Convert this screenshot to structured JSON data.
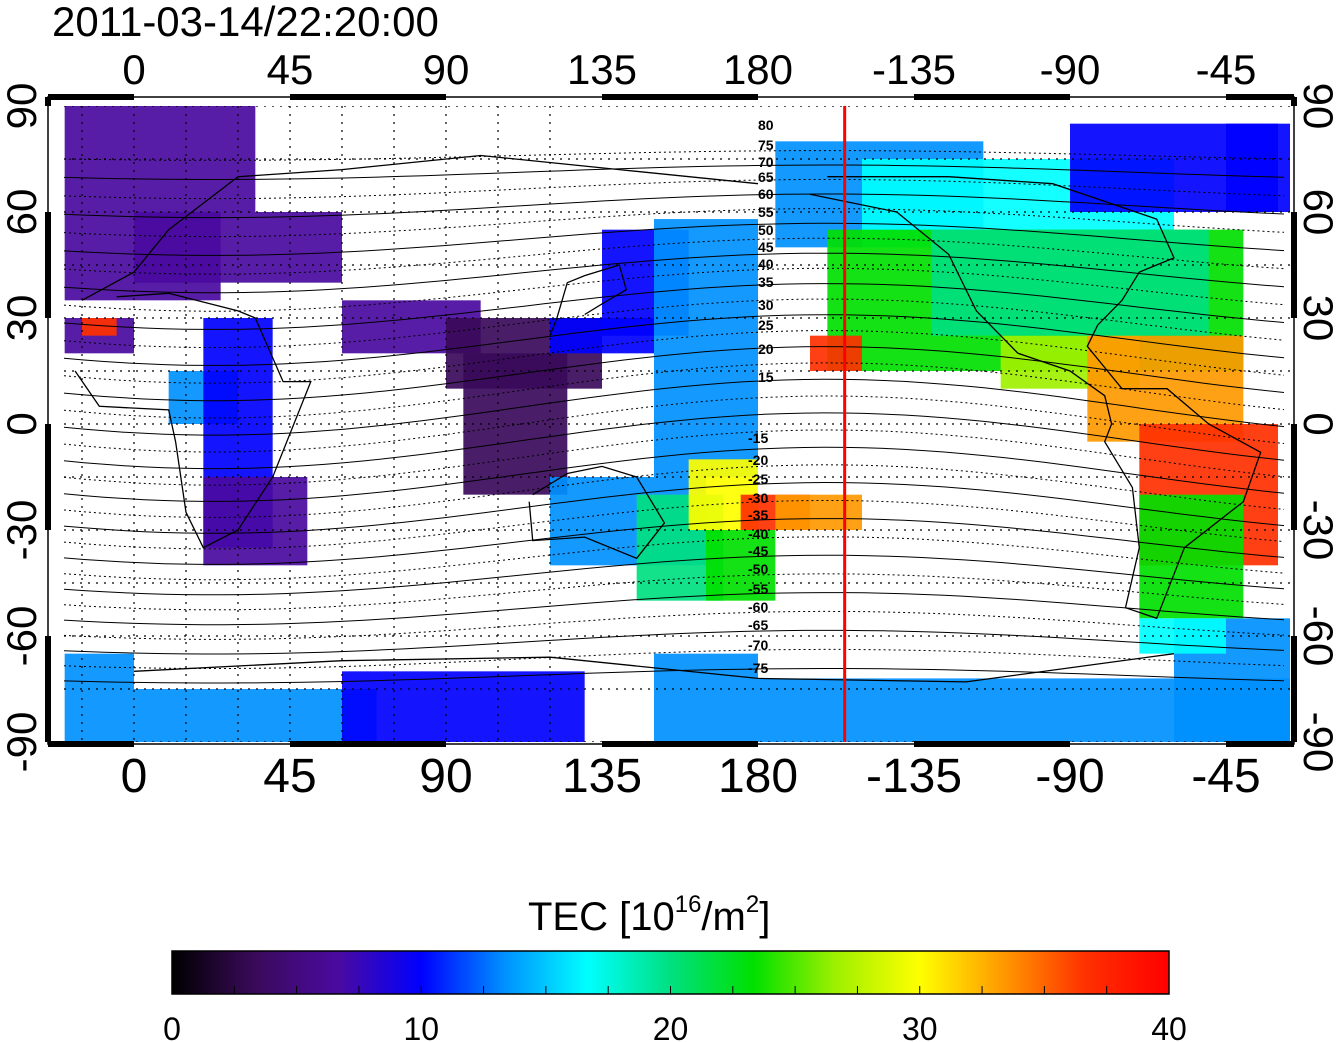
{
  "timestamp": "2011-03-14/22:20:00",
  "x_tick_labels": [
    "0",
    "45",
    "90",
    "135",
    "180",
    "-135",
    "-90",
    "-45"
  ],
  "y_tick_labels": [
    "90",
    "60",
    "30",
    "0",
    "-30",
    "-60",
    "-90"
  ],
  "contour_labels_north": [
    "80",
    "75",
    "70",
    "65",
    "60",
    "55",
    "50",
    "45",
    "40",
    "35",
    "30",
    "25",
    "20",
    "15"
  ],
  "contour_labels_south": [
    "-15",
    "-20",
    "-25",
    "-30",
    "-35",
    "-40",
    "-45",
    "-50",
    "-55",
    "-60",
    "-65",
    "-70",
    "-75"
  ],
  "colorbar": {
    "title_main": "TEC  [10",
    "title_sup": "16",
    "title_unit": "/m",
    "title_sup2": "2",
    "title_end": "]",
    "tick_labels": [
      "0",
      "10",
      "20",
      "30",
      "40"
    ],
    "range": [
      0,
      40
    ],
    "colors": [
      "#000000",
      "#3a0a5a",
      "#4a0aa0",
      "#0000ff",
      "#0090ff",
      "#00ffff",
      "#00e080",
      "#00e000",
      "#a0f000",
      "#ffff00",
      "#ff9900",
      "#ff3000",
      "#ff0000"
    ]
  },
  "marker_meridian_lon": -155,
  "marker_color": "#ff0000"
}
